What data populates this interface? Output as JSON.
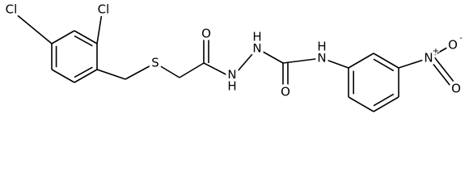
{
  "atoms": [
    {
      "label": "Cl"
    },
    {
      "label": "Cl"
    },
    {
      "label": "S"
    },
    {
      "label": "O"
    },
    {
      "label": "N",
      "hydrogen": "H"
    },
    {
      "label": "N",
      "hydrogen": "H"
    },
    {
      "label": "O"
    },
    {
      "label": "N",
      "hydrogen": "H"
    },
    {
      "label": "N",
      "charge": "+"
    },
    {
      "label": "O",
      "charge": "-"
    },
    {
      "label": "O"
    }
  ]
}
